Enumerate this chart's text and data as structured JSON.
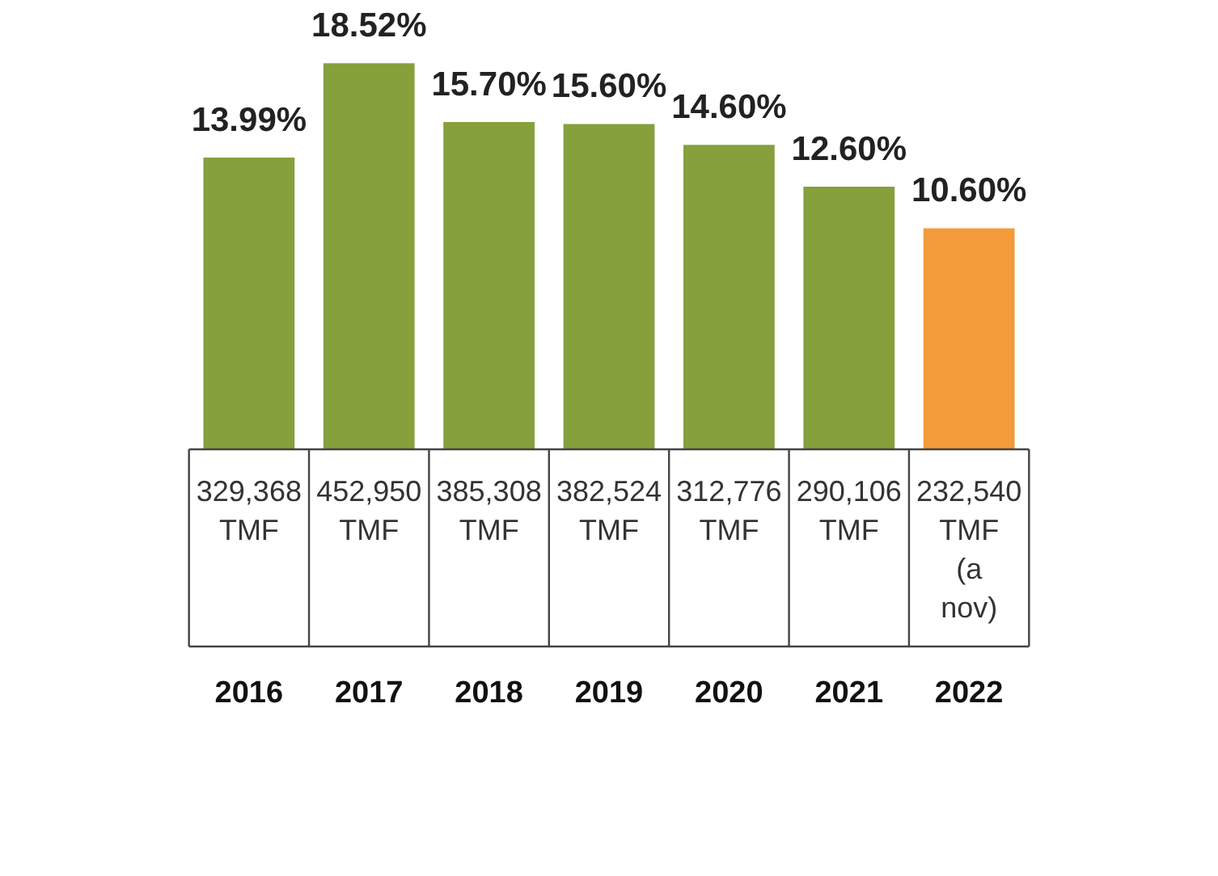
{
  "chart_data": {
    "type": "bar",
    "categories": [
      "2016",
      "2017",
      "2018",
      "2019",
      "2020",
      "2021",
      "2022"
    ],
    "values": [
      13.99,
      18.52,
      15.7,
      15.6,
      14.6,
      12.6,
      10.6
    ],
    "colors": [
      "#86a03c",
      "#86a03c",
      "#86a03c",
      "#86a03c",
      "#86a03c",
      "#86a03c",
      "#f39b3a"
    ],
    "value_labels": [
      "13.99%",
      "18.52%",
      "15.70%",
      "15.60%",
      "14.60%",
      "12.60%",
      "10.60%"
    ],
    "annotations": [
      "329,368 TMF",
      "452,950 TMF",
      "385,308 TMF",
      "382,524 TMF",
      "312,776 TMF",
      "290,106 TMF",
      "232,540 TMF (a nov)"
    ],
    "grid": false,
    "legend": false
  }
}
